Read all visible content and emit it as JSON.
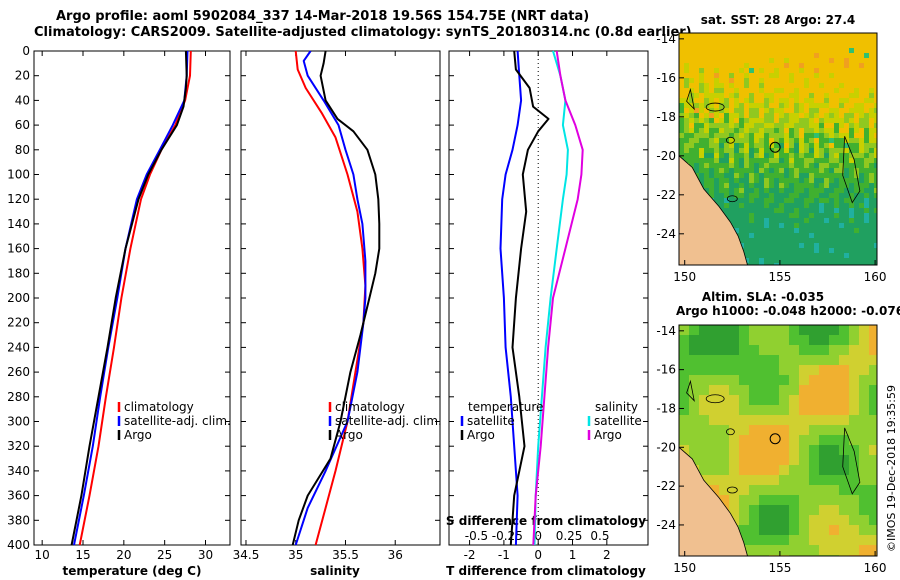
{
  "title_line1": "Argo profile: aoml 5902084_337 14-Mar-2018 19.56S 154.75E (NRT data)",
  "title_line2": "Climatology: CARS2009. Satellite-adjusted climatology: synTS_20180314.nc (0.8d earlier)",
  "stamp": "©IMOS 19-Dec-2018 19:35:59",
  "colors": {
    "climatology": "#ff0000",
    "satellite": "#0000ff",
    "argo": "#000000",
    "sat_temp": "#00e5e5",
    "clim_temp": "#e000e0"
  },
  "chart_data": [
    {
      "type": "line",
      "name": "temperature",
      "xlabel": "temperature (deg C)",
      "ylabel": "",
      "xlim": [
        9,
        33
      ],
      "ylim": [
        400,
        0
      ],
      "xticks": [
        "10",
        "15",
        "20",
        "25",
        "30"
      ],
      "yticks": [
        "0",
        "20",
        "40",
        "60",
        "80",
        "100",
        "120",
        "140",
        "160",
        "180",
        "200",
        "220",
        "240",
        "260",
        "280",
        "300",
        "320",
        "340",
        "360",
        "380",
        "400"
      ],
      "legend": [
        "climatology",
        "satellite-adj. clim.",
        "Argo"
      ],
      "series": [
        {
          "name": "climatology",
          "depth": [
            0,
            20,
            40,
            60,
            80,
            100,
            120,
            160,
            200,
            240,
            280,
            320,
            360,
            400
          ],
          "values": [
            28.2,
            28.1,
            27.5,
            26.3,
            24.6,
            23.2,
            22.1,
            20.8,
            19.7,
            18.8,
            17.8,
            16.9,
            15.8,
            14.6
          ]
        },
        {
          "name": "satellite-adj. clim.",
          "depth": [
            0,
            20,
            40,
            60,
            80,
            100,
            120,
            160,
            200,
            240,
            280,
            320,
            360,
            400
          ],
          "values": [
            27.8,
            27.7,
            27.4,
            26.0,
            24.4,
            22.8,
            21.6,
            20.2,
            19.2,
            18.1,
            17.1,
            16.2,
            15.1,
            13.9
          ]
        },
        {
          "name": "Argo",
          "depth": [
            0,
            20,
            30,
            45,
            60,
            80,
            100,
            120,
            160,
            200,
            240,
            280,
            320,
            360,
            400
          ],
          "values": [
            27.6,
            27.7,
            27.6,
            27.3,
            26.5,
            24.6,
            23.0,
            21.8,
            20.2,
            19.0,
            18.0,
            16.9,
            15.8,
            14.8,
            13.6
          ]
        }
      ]
    },
    {
      "type": "line",
      "name": "salinity",
      "xlabel": "salinity",
      "ylabel": "",
      "xlim": [
        34.45,
        36.45
      ],
      "ylim": [
        400,
        0
      ],
      "xticks": [
        "34.5",
        "35",
        "35.5",
        "36"
      ],
      "legend": [
        "climatology",
        "satellite-adj. clim.",
        "Argo"
      ],
      "series": [
        {
          "name": "climatology",
          "depth": [
            0,
            15,
            30,
            50,
            70,
            100,
            130,
            160,
            190,
            220,
            260,
            300,
            340,
            370,
            400
          ],
          "values": [
            35.0,
            35.02,
            35.1,
            35.26,
            35.4,
            35.52,
            35.62,
            35.67,
            35.7,
            35.68,
            35.6,
            35.52,
            35.4,
            35.3,
            35.2
          ]
        },
        {
          "name": "satellite-adj. clim.",
          "depth": [
            0,
            8,
            20,
            40,
            60,
            80,
            100,
            120,
            140,
            170,
            200,
            220,
            260,
            300,
            340,
            370,
            400
          ],
          "values": [
            35.15,
            35.08,
            35.12,
            35.28,
            35.43,
            35.5,
            35.58,
            35.62,
            35.67,
            35.7,
            35.7,
            35.68,
            35.62,
            35.52,
            35.3,
            35.12,
            35.0
          ]
        },
        {
          "name": "Argo",
          "depth": [
            0,
            10,
            20,
            40,
            55,
            65,
            80,
            100,
            120,
            140,
            160,
            180,
            200,
            230,
            260,
            300,
            330,
            360,
            380,
            400
          ],
          "values": [
            35.3,
            35.28,
            35.25,
            35.3,
            35.42,
            35.58,
            35.72,
            35.8,
            35.83,
            35.84,
            35.84,
            35.8,
            35.74,
            35.65,
            35.55,
            35.45,
            35.35,
            35.12,
            35.03,
            34.97
          ]
        }
      ]
    },
    {
      "type": "line",
      "name": "differences",
      "xlabel": "T difference from climatology",
      "x2label": "S difference from climatology",
      "xlim": [
        -2.6,
        3.2
      ],
      "ylim": [
        400,
        0
      ],
      "xticks": [
        "-2",
        "-1",
        "0",
        "1",
        "2"
      ],
      "x2ticks": [
        "-0.5",
        "-0.25",
        "0",
        "0.25",
        "0.5"
      ],
      "legend_temperature": {
        "title": "temperature",
        "items": [
          "satellite",
          "Argo"
        ]
      },
      "legend_salinity": {
        "title": "salinity",
        "items": [
          "satellite",
          "Argo"
        ]
      },
      "series": [
        {
          "name": "T satellite",
          "depth": [
            0,
            20,
            40,
            60,
            80,
            100,
            120,
            160,
            200,
            240,
            280,
            320,
            360,
            400
          ],
          "values": [
            -0.6,
            -0.55,
            -0.5,
            -0.6,
            -0.75,
            -0.95,
            -1.05,
            -1.1,
            -1.0,
            -0.95,
            -0.8,
            -0.7,
            -0.6,
            -0.65
          ]
        },
        {
          "name": "T Argo",
          "depth": [
            0,
            15,
            30,
            45,
            55,
            65,
            80,
            100,
            130,
            160,
            200,
            240,
            280,
            320,
            360,
            400
          ],
          "values": [
            -0.7,
            -0.65,
            -0.25,
            -0.15,
            0.3,
            0.0,
            -0.3,
            -0.45,
            -0.35,
            -0.5,
            -0.65,
            -0.75,
            -0.55,
            -0.4,
            -0.7,
            -0.8
          ]
        },
        {
          "name": "S satellite",
          "depth": [
            0,
            20,
            40,
            60,
            80,
            100,
            120,
            160,
            200,
            240,
            280,
            320,
            360,
            400
          ],
          "values": [
            0.12,
            0.18,
            0.22,
            0.2,
            0.24,
            0.23,
            0.2,
            0.15,
            0.1,
            0.06,
            0.03,
            0.0,
            -0.02,
            -0.03
          ]
        },
        {
          "name": "S Argo",
          "depth": [
            0,
            20,
            40,
            60,
            80,
            100,
            120,
            160,
            200,
            240,
            280,
            320,
            360,
            400
          ],
          "values": [
            0.15,
            0.18,
            0.22,
            0.3,
            0.36,
            0.35,
            0.32,
            0.22,
            0.12,
            0.08,
            0.05,
            0.02,
            -0.02,
            -0.04
          ]
        }
      ]
    },
    {
      "type": "heatmap",
      "name": "sst-map",
      "title": "sat. SST: 28 Argo: 27.4",
      "xlim": [
        149.7,
        160.1
      ],
      "ylim": [
        -25.6,
        -13.7
      ],
      "xticks": [
        "150",
        "155",
        "160"
      ],
      "yticks": [
        "-14",
        "-16",
        "-18",
        "-20",
        "-22",
        "-24"
      ],
      "argo_position": [
        154.75,
        -19.56
      ]
    },
    {
      "type": "heatmap",
      "name": "sla-map",
      "title": "Altim. SLA: -0.035",
      "subtitle": "Argo h1000: -0.048 h2000: -0.076",
      "xlim": [
        149.7,
        160.1
      ],
      "ylim": [
        -25.6,
        -13.7
      ],
      "xticks": [
        "150",
        "155",
        "160"
      ],
      "yticks": [
        "-14",
        "-16",
        "-18",
        "-20",
        "-22",
        "-24"
      ],
      "argo_position": [
        154.75,
        -19.56
      ]
    }
  ]
}
